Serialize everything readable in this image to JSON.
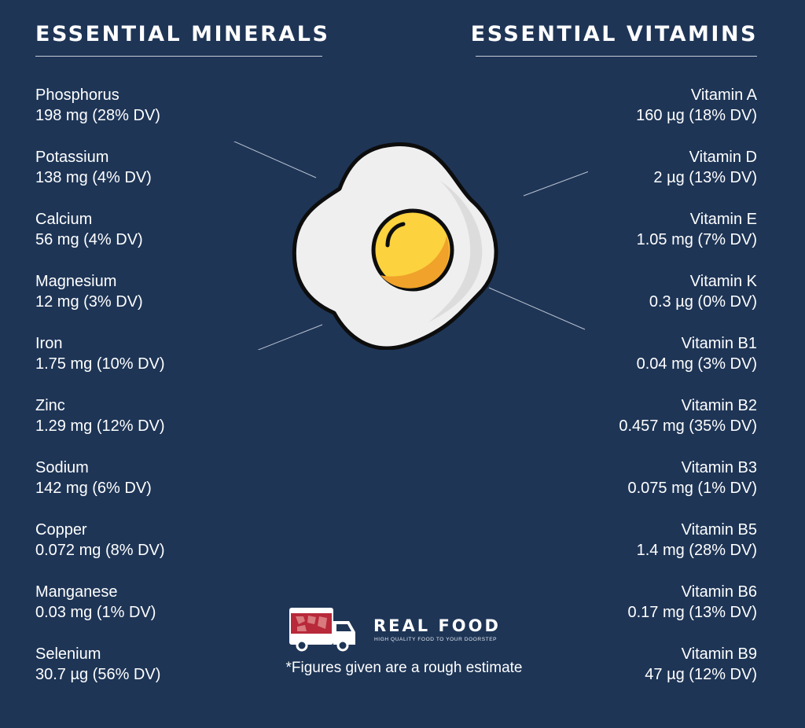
{
  "minerals": {
    "heading": "ESSENTIAL MINERALS",
    "items": [
      {
        "name": "Phosphorus",
        "amount": "198 mg (28% DV)"
      },
      {
        "name": "Potassium",
        "amount": "138 mg (4% DV)"
      },
      {
        "name": "Calcium",
        "amount": "56 mg (4% DV)"
      },
      {
        "name": "Magnesium",
        "amount": "12 mg (3% DV)"
      },
      {
        "name": "Iron",
        "amount": "1.75 mg (10% DV)"
      },
      {
        "name": "Zinc",
        "amount": "1.29 mg (12% DV)"
      },
      {
        "name": "Sodium",
        "amount": "142 mg (6% DV)"
      },
      {
        "name": "Copper",
        "amount": "0.072 mg (8% DV)"
      },
      {
        "name": "Manganese",
        "amount": "0.03 mg (1% DV)"
      },
      {
        "name": "Selenium",
        "amount": "30.7 µg (56% DV)"
      }
    ]
  },
  "vitamins": {
    "heading": "ESSENTIAL VITAMINS",
    "items": [
      {
        "name": "Vitamin A",
        "amount": "160 µg (18% DV)"
      },
      {
        "name": "Vitamin D",
        "amount": "2 µg (13% DV)"
      },
      {
        "name": "Vitamin E",
        "amount": "1.05 mg (7% DV)"
      },
      {
        "name": "Vitamin K",
        "amount": "0.3 µg (0% DV)"
      },
      {
        "name": "Vitamin B1",
        "amount": "0.04 mg (3% DV)"
      },
      {
        "name": "Vitamin B2",
        "amount": "0.457 mg (35% DV)"
      },
      {
        "name": "Vitamin B3",
        "amount": "0.075 mg (1% DV)"
      },
      {
        "name": "Vitamin B5",
        "amount": "1.4 mg (28% DV)"
      },
      {
        "name": "Vitamin B6",
        "amount": "0.17 mg (13% DV)"
      },
      {
        "name": "Vitamin B9",
        "amount": "47 µg (12% DV)"
      }
    ]
  },
  "illustration": {
    "icon": "fried-egg-icon"
  },
  "brand": {
    "name": "REAL FOOD",
    "tagline": "HIGH QUALITY FOOD TO YOUR DOORSTEP",
    "icon": "delivery-truck-icon"
  },
  "footnote": "*Figures given are a rough estimate",
  "colors": {
    "background": "#1e3556",
    "text": "#ffffff",
    "egg_white": "#efefef",
    "yolk": "#fcd23e",
    "yolk_shade": "#f0a22a",
    "truck_red": "#b8293a"
  }
}
